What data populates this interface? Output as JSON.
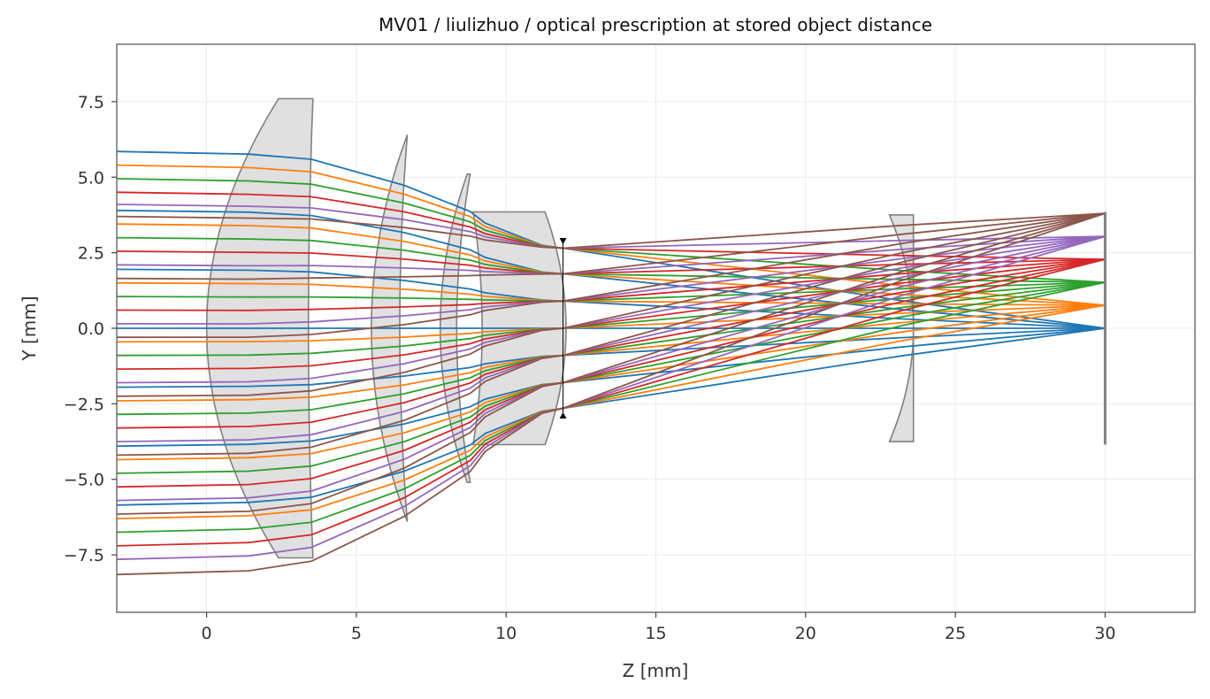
{
  "chart_data": {
    "type": "line",
    "title": "MV01 / liulizhuo / optical prescription at stored object distance",
    "xlabel": "Z [mm]",
    "ylabel": "Y [mm]",
    "xlim": [
      -3.0,
      33.0
    ],
    "ylim": [
      -9.4,
      9.4
    ],
    "grid": true,
    "xticks": [
      0,
      5,
      10,
      15,
      20,
      25,
      30
    ],
    "yticks": [
      -7.5,
      -5.0,
      -2.5,
      0.0,
      2.5,
      5.0,
      7.5
    ],
    "xtick_labels": [
      "0",
      "5",
      "10",
      "15",
      "20",
      "25",
      "30"
    ],
    "ytick_labels": [
      "−7.5",
      "−5.0",
      "−2.5",
      "0.0",
      "2.5",
      "5.0",
      "7.5"
    ],
    "lens_fill": "#e0e0e0",
    "lens_edge": "#808080",
    "lenses": [
      {
        "z_front": 0.0,
        "sag_front": 2.4,
        "z_back": 3.55,
        "sag_back": 0.15,
        "semi_aperture": 7.6
      },
      {
        "z_front": 5.5,
        "sag_front": 1.2,
        "z_back": 6.7,
        "sag_back": 0.25,
        "semi_aperture": 6.4
      },
      {
        "z_front": 7.8,
        "sag_front": 0.9,
        "z_back": 8.8,
        "sag_back": 0.45,
        "semi_aperture": 5.1
      },
      {
        "z_front": 9.2,
        "sag_front": -0.3,
        "z_back": 11.3,
        "sag_back": -0.7,
        "semi_aperture": 3.85
      },
      {
        "z_front": 23.6,
        "sag_front": -0.8,
        "z_back": 23.6,
        "sag_back": 0.0,
        "semi_aperture": 3.75
      }
    ],
    "stop": {
      "z": 11.9,
      "semi_aperture": 2.9
    },
    "image_plane": {
      "z": 30.0,
      "half_height": 3.85
    },
    "fields": [
      {
        "color": "#1f77b4",
        "image_y": 0.0,
        "entry_y": [
          5.85,
          3.9,
          1.95,
          0.0,
          -1.95,
          -3.9,
          -5.85
        ]
      },
      {
        "color": "#ff7f0e",
        "image_y": 0.76,
        "entry_y": [
          5.4,
          3.45,
          1.5,
          -0.45,
          -2.4,
          -4.35,
          -6.3
        ]
      },
      {
        "color": "#2ca02c",
        "image_y": 1.52,
        "entry_y": [
          4.95,
          3.0,
          1.05,
          -0.9,
          -2.85,
          -4.8,
          -6.75
        ]
      },
      {
        "color": "#d62728",
        "image_y": 2.28,
        "entry_y": [
          4.5,
          2.55,
          0.6,
          -1.35,
          -3.3,
          -5.25,
          -7.2
        ]
      },
      {
        "color": "#9467bd",
        "image_y": 3.04,
        "entry_y": [
          4.1,
          2.1,
          0.15,
          -1.8,
          -3.75,
          -5.7,
          -7.65
        ]
      },
      {
        "color": "#8c564b",
        "image_y": 3.8,
        "entry_y": [
          3.7,
          1.65,
          -0.3,
          -2.25,
          -4.2,
          -6.15,
          -8.15
        ]
      }
    ],
    "stop_heights": [
      2.65,
      1.8,
      0.9,
      0.0,
      -0.9,
      -1.8,
      -2.65
    ]
  }
}
